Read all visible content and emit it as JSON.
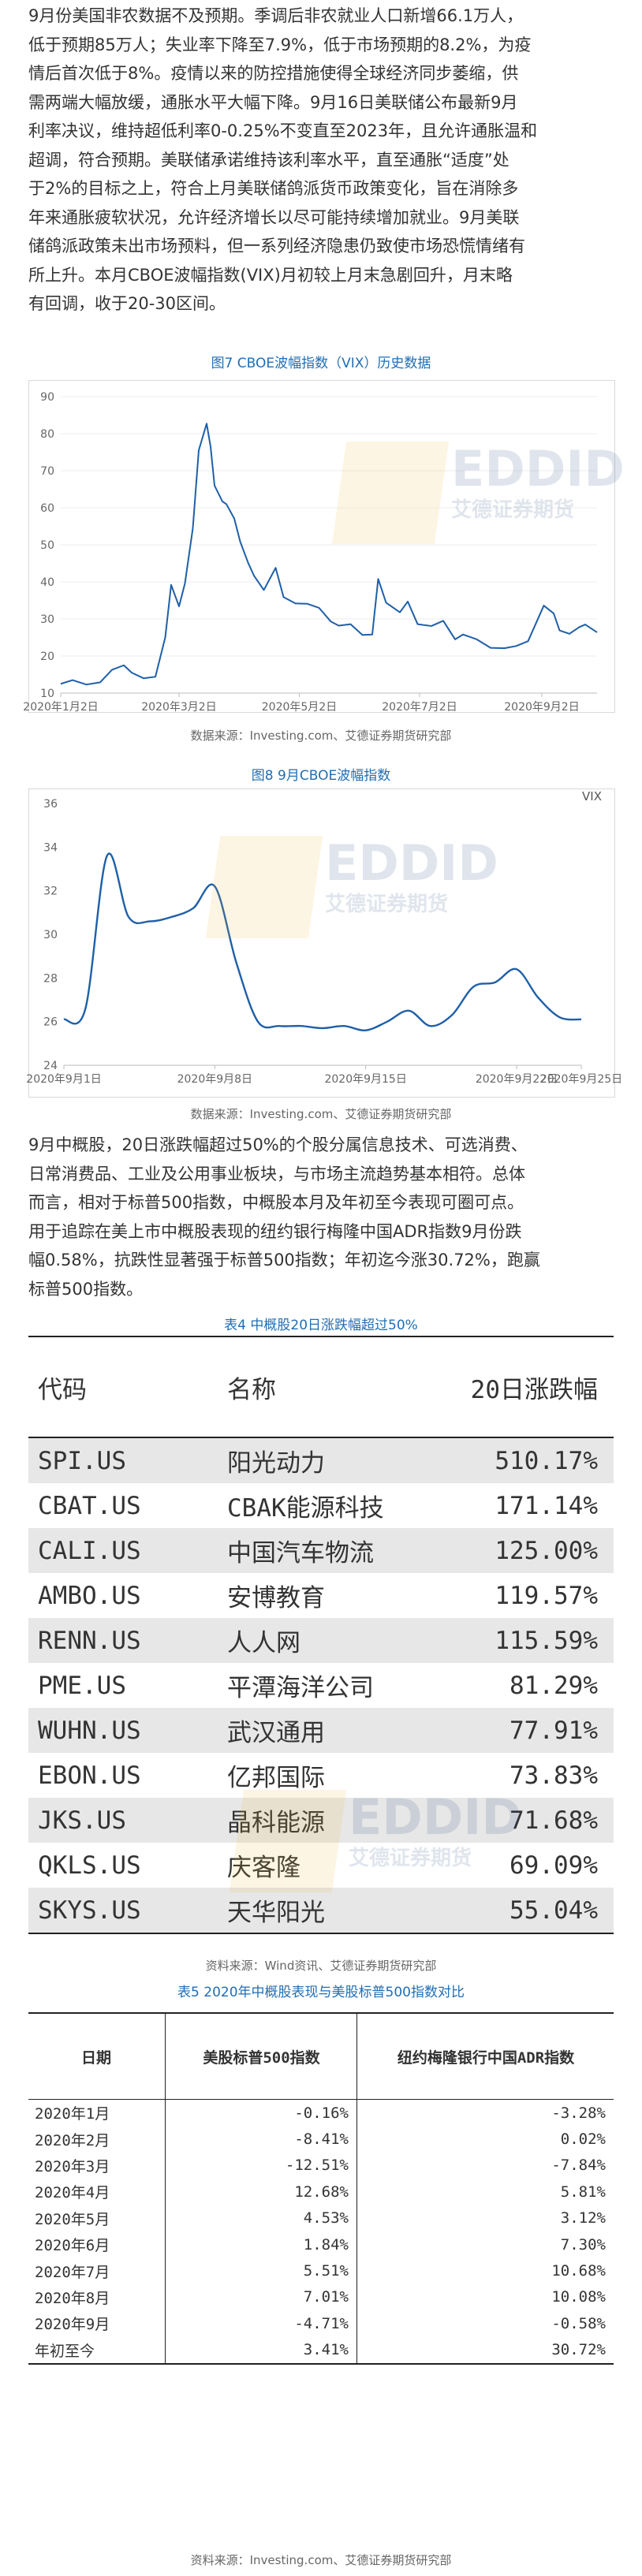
{
  "paragraph1_lines": [
    "9月份美国非农数据不及预期。季调后非农就业人口新增66.1万人，",
    "低于预期85万人；失业率下降至7.9%，低于市场预期的8.2%，为疫",
    "情后首次低于8%。疫情以来的防控措施使得全球经济同步萎缩，供",
    "需两端大幅放缓，通胀水平大幅下降。9月16日美联储公布最新9月",
    "利率决议，维持超低利率0-0.25%不变直至2023年，且允许通胀温和",
    "超调，符合预期。美联储承诺维持该利率水平，直至通胀“适度”处",
    "于2%的目标之上，符合上月美联储鸽派货币政策变化，旨在消除多",
    "年来通胀疲软状况，允许经济增长以尽可能持续增加就业。9月美联",
    "储鸽派政策未出市场预料，但一系列经济隐患仍致使市场恐慌情绪有",
    "所上升。本月CBOE波幅指数(VIX)月初较上月末急剧回升，月末略",
    "有回调，收于20-30区间。"
  ],
  "figure7": {
    "caption": "图7  CBOE波幅指数（VIX）历史数据",
    "source": "数据来源：Investing.com、艾德证券期货研究部"
  },
  "figure8": {
    "caption": "图8  9月CBOE波幅指数",
    "source": "数据来源：Investing.com、艾德证券期货研究部"
  },
  "paragraph2_lines": [
    "9月中概股，20日涨跌幅超过50%的个股分属信息技术、可选消费、",
    "日常消费品、工业及公用事业板块，与市场主流趋势基本相符。总体",
    "而言，相对于标普500指数，中概股本月及年初至今表现可圈可点。",
    "用于追踪在美上市中概股表现的纽约银行梅隆中国ADR指数9月份跌",
    "幅0.58%，抗跌性显著强于标普500指数；年初迄今涨30.72%，跑赢",
    "标普500指数。"
  ],
  "table4": {
    "caption": "表4  中概股20日涨跌幅超过50%",
    "source": "资料来源：Wind资讯、艾德证券期货研究部",
    "headers": [
      "代码",
      "名称",
      "20日涨跌幅"
    ],
    "rows": [
      [
        "SPI.US",
        "阳光动力",
        "510.17%"
      ],
      [
        "CBAT.US",
        "CBAK能源科技",
        "171.14%"
      ],
      [
        "CALI.US",
        "中国汽车物流",
        "125.00%"
      ],
      [
        "AMBO.US",
        "安博教育",
        "119.57%"
      ],
      [
        "RENN.US",
        "人人网",
        "115.59%"
      ],
      [
        "PME.US",
        "平潭海洋公司",
        "81.29%"
      ],
      [
        "WUHN.US",
        "武汉通用",
        "77.91%"
      ],
      [
        "EBON.US",
        "亿邦国际",
        "73.83%"
      ],
      [
        "JKS.US",
        "晶科能源",
        "71.68%"
      ],
      [
        "QKLS.US",
        "庆客隆",
        "69.09%"
      ],
      [
        "SKYS.US",
        "天华阳光",
        "55.04%"
      ]
    ]
  },
  "table5": {
    "caption": "表5  2020年中概股表现与美股标普500指数对比",
    "source": "资料来源：Investing.com、艾德证券期货研究部",
    "headers": [
      "日期",
      "美股标普500指数",
      "纽约梅隆银行中国ADR指数"
    ],
    "rows": [
      [
        "2020年1月",
        "-0.16%",
        "-3.28%"
      ],
      [
        "2020年2月",
        "-8.41%",
        "0.02%"
      ],
      [
        "2020年3月",
        "-12.51%",
        "-7.84%"
      ],
      [
        "2020年4月",
        "12.68%",
        "5.81%"
      ],
      [
        "2020年5月",
        "4.53%",
        "3.12%"
      ],
      [
        "2020年6月",
        "1.84%",
        "7.30%"
      ],
      [
        "2020年7月",
        "5.51%",
        "10.68%"
      ],
      [
        "2020年8月",
        "7.01%",
        "10.08%"
      ],
      [
        "2020年9月",
        "-4.71%",
        "-0.58%"
      ],
      [
        "年初至今",
        "3.41%",
        "30.72%"
      ]
    ]
  },
  "watermark": {
    "brand": "EDDID",
    "brand_sub": "艾德证券期货"
  },
  "colors": {
    "line": "#1f5fa8",
    "caption": "#1f6eb5",
    "table_stripe": "#e7e7e7"
  },
  "chart_data": [
    {
      "type": "line",
      "title": "",
      "xlabel": "",
      "ylabel": "",
      "x_tick_labels": [
        "2020年1月2日",
        "2020年3月2日",
        "2020年5月2日",
        "2020年7月2日",
        "2020年9月2日"
      ],
      "y_ticks": [
        10,
        20,
        30,
        40,
        50,
        60,
        70,
        80,
        90
      ],
      "ylim": [
        10,
        90
      ],
      "xlim": [
        "2020-01-02",
        "2020-09-30"
      ],
      "series": [
        {
          "points": [
            [
              "2020-01-02",
              12.5
            ],
            [
              "2020-01-08",
              13.5
            ],
            [
              "2020-01-15",
              12.3
            ],
            [
              "2020-01-22",
              12.9
            ],
            [
              "2020-01-28",
              16.3
            ],
            [
              "2020-02-03",
              17.5
            ],
            [
              "2020-02-07",
              15.5
            ],
            [
              "2020-02-13",
              14.0
            ],
            [
              "2020-02-19",
              14.4
            ],
            [
              "2020-02-24",
              25.0
            ],
            [
              "2020-02-27",
              39.2
            ],
            [
              "2020-03-02",
              33.4
            ],
            [
              "2020-03-05",
              39.6
            ],
            [
              "2020-03-09",
              54.5
            ],
            [
              "2020-03-12",
              75.5
            ],
            [
              "2020-03-16",
              82.7
            ],
            [
              "2020-03-18",
              76.5
            ],
            [
              "2020-03-20",
              66.0
            ],
            [
              "2020-03-24",
              61.7
            ],
            [
              "2020-03-26",
              61.0
            ],
            [
              "2020-03-30",
              57.1
            ],
            [
              "2020-04-02",
              50.9
            ],
            [
              "2020-04-06",
              45.2
            ],
            [
              "2020-04-09",
              41.7
            ],
            [
              "2020-04-14",
              37.8
            ],
            [
              "2020-04-20",
              43.8
            ],
            [
              "2020-04-24",
              35.9
            ],
            [
              "2020-04-30",
              34.2
            ],
            [
              "2020-05-06",
              34.1
            ],
            [
              "2020-05-12",
              33.0
            ],
            [
              "2020-05-18",
              29.3
            ],
            [
              "2020-05-22",
              28.2
            ],
            [
              "2020-05-28",
              28.6
            ],
            [
              "2020-06-03",
              25.7
            ],
            [
              "2020-06-08",
              25.8
            ],
            [
              "2020-06-11",
              40.8
            ],
            [
              "2020-06-15",
              34.4
            ],
            [
              "2020-06-22",
              31.8
            ],
            [
              "2020-06-26",
              34.7
            ],
            [
              "2020-07-01",
              28.6
            ],
            [
              "2020-07-08",
              28.1
            ],
            [
              "2020-07-14",
              29.5
            ],
            [
              "2020-07-20",
              24.5
            ],
            [
              "2020-07-24",
              25.8
            ],
            [
              "2020-07-31",
              24.5
            ],
            [
              "2020-08-07",
              22.2
            ],
            [
              "2020-08-14",
              22.1
            ],
            [
              "2020-08-20",
              22.7
            ],
            [
              "2020-08-26",
              24.0
            ],
            [
              "2020-09-03",
              33.6
            ],
            [
              "2020-09-08",
              31.5
            ],
            [
              "2020-09-11",
              26.9
            ],
            [
              "2020-09-16",
              26.0
            ],
            [
              "2020-09-21",
              27.8
            ],
            [
              "2020-09-24",
              28.5
            ],
            [
              "2020-09-30",
              26.4
            ]
          ]
        }
      ]
    },
    {
      "type": "line",
      "title": "",
      "xlabel": "",
      "ylabel": "VIX",
      "x_tick_labels": [
        "2020年9月1日",
        "2020年9月8日",
        "2020年9月15日",
        "2020年9月22日",
        "2020年9月25日"
      ],
      "y_ticks": [
        24,
        26,
        28,
        30,
        32,
        34,
        36
      ],
      "ylim": [
        24,
        36
      ],
      "xlim": [
        "2020-09-01",
        "2020-09-25"
      ],
      "series": [
        {
          "points": [
            [
              "2020-09-01",
              26.1
            ],
            [
              "2020-09-02",
              26.6
            ],
            [
              "2020-09-03",
              33.6
            ],
            [
              "2020-09-04",
              30.8
            ],
            [
              "2020-09-05",
              30.6
            ],
            [
              "2020-09-06",
              30.8
            ],
            [
              "2020-09-07",
              31.2
            ],
            [
              "2020-09-08",
              32.2
            ],
            [
              "2020-09-09",
              28.7
            ],
            [
              "2020-09-10",
              26.0
            ],
            [
              "2020-09-11",
              25.8
            ],
            [
              "2020-09-12",
              25.8
            ],
            [
              "2020-09-13",
              25.7
            ],
            [
              "2020-09-14",
              25.8
            ],
            [
              "2020-09-15",
              25.6
            ],
            [
              "2020-09-16",
              26.0
            ],
            [
              "2020-09-17",
              26.5
            ],
            [
              "2020-09-18",
              25.8
            ],
            [
              "2020-09-19",
              26.3
            ],
            [
              "2020-09-20",
              27.6
            ],
            [
              "2020-09-21",
              27.8
            ],
            [
              "2020-09-22",
              28.4
            ],
            [
              "2020-09-23",
              27.1
            ],
            [
              "2020-09-24",
              26.2
            ],
            [
              "2020-09-25",
              26.1
            ]
          ]
        }
      ]
    }
  ]
}
